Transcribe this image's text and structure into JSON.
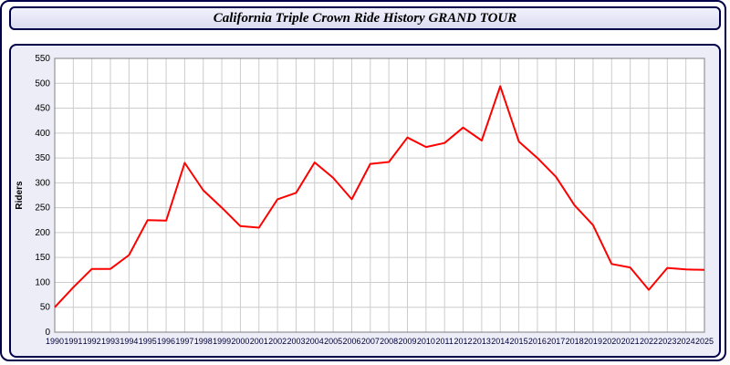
{
  "header": {
    "title": "California Triple Crown Ride History GRAND TOUR"
  },
  "chart_data": {
    "type": "line",
    "x": [
      1990,
      1991,
      1992,
      1993,
      1994,
      1995,
      1996,
      1997,
      1998,
      1999,
      2000,
      2001,
      2002,
      2003,
      2004,
      2005,
      2006,
      2007,
      2008,
      2009,
      2010,
      2011,
      2012,
      2013,
      2014,
      2015,
      2016,
      2017,
      2018,
      2019,
      2020,
      2021,
      2022,
      2023,
      2024,
      2025
    ],
    "series": [
      {
        "name": "Riders",
        "color": "#ff0000",
        "values": [
          50,
          90,
          127,
          127,
          155,
          225,
          224,
          340,
          285,
          250,
          213,
          210,
          267,
          280,
          341,
          310,
          267,
          338,
          342,
          391,
          372,
          380,
          411,
          385,
          494,
          383,
          350,
          312,
          255,
          215,
          137,
          130,
          85,
          129,
          126,
          125
        ]
      }
    ],
    "title": "California Triple Crown Ride History GRAND TOUR",
    "xlabel": "",
    "ylabel": "Riders",
    "ylim": [
      0,
      550
    ],
    "ytick": 50,
    "grid": true,
    "legend_position": "none",
    "plot_bg": "#ffffff",
    "grid_color": "#cccccc",
    "axis_color": "#808080"
  }
}
